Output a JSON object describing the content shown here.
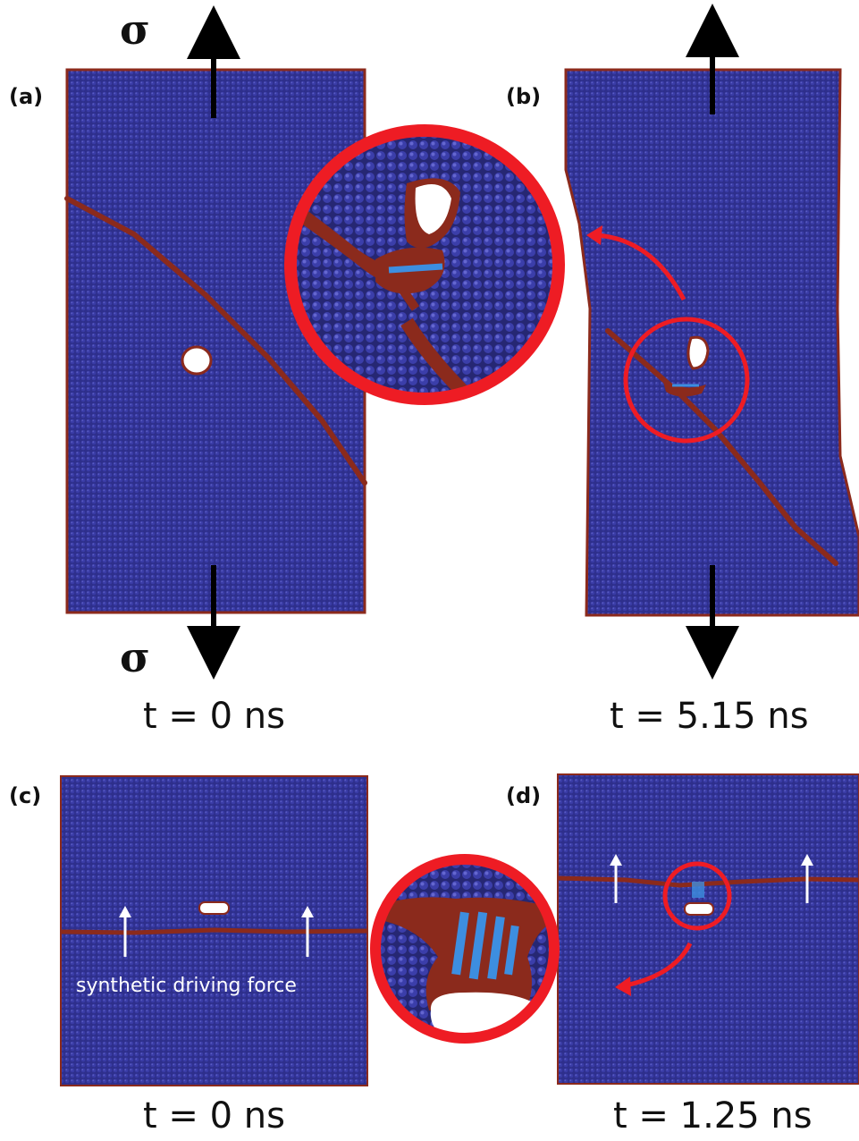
{
  "panels": {
    "a": {
      "label": "(a)",
      "time": "t = 0 ns"
    },
    "b": {
      "label": "(b)",
      "time": "t = 5.15 ns"
    },
    "c": {
      "label": "(c)",
      "time": "t = 0 ns"
    },
    "d": {
      "label": "(d)",
      "time": "t = 1.25 ns"
    }
  },
  "stress_symbol": "σ",
  "annotation": "synthetic driving force",
  "colors": {
    "crystal": "#2e2f8c",
    "grain_boundary": "#8b2a1c",
    "defect": "#3d8ee0",
    "void": "#ffffff",
    "zoom_circle": "#ee1c24",
    "arrow": "#000000"
  }
}
